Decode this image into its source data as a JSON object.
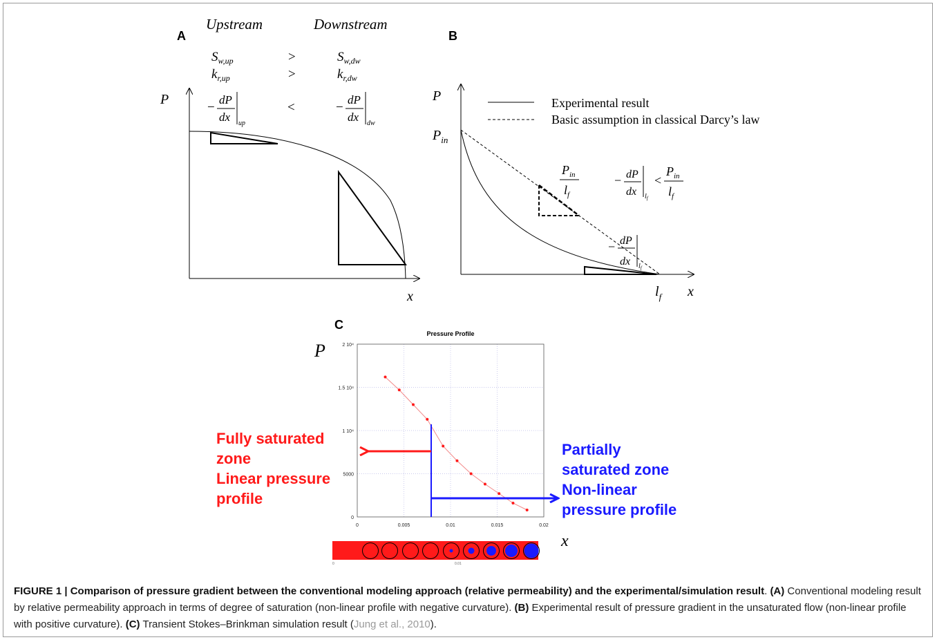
{
  "panel_a": {
    "letter": "A",
    "upstream": "Upstream",
    "downstream": "Downstream",
    "s_up": "S",
    "s_up_sub": "w,up",
    "s_dw": "S",
    "s_dw_sub": "w,dw",
    "k_up": "k",
    "k_up_sub": "r,up",
    "k_dw": "k",
    "k_dw_sub": "r,dw",
    "gt1": ">",
    "gt2": ">",
    "lt": "<",
    "minus": "−",
    "dP": "dP",
    "dx": "dx",
    "grad_up_sub": "up",
    "grad_dw_sub": "dw",
    "y_axis": "P",
    "x_axis": "x"
  },
  "panel_b": {
    "letter": "B",
    "y_axis": "P",
    "x_axis": "x",
    "p_in": "P",
    "p_in_sub": "in",
    "l_f": "l",
    "l_f_sub": "f",
    "legend_solid": "Experimental result",
    "legend_dashed": "Basic assumption in classical Darcy’s law",
    "ratio_num": "P",
    "ratio_num_sub": "in",
    "ratio_den": "l",
    "ratio_den_sub": "f",
    "minus": "−",
    "dP": "dP",
    "dx": "dx",
    "lt": "<",
    "grad_sub": "l",
    "grad_sub_sub": "f"
  },
  "panel_c": {
    "letter": "C",
    "title": "Pressure Profile",
    "y_axis": "P",
    "x_axis": "x",
    "ytick_labels": [
      "2 10⁴",
      "1.5 10⁴",
      "1 10⁴",
      "5000",
      "0"
    ],
    "xtick_labels": [
      "0",
      "0.005",
      "0.01",
      "0.015",
      "0.02"
    ],
    "bar_label_left": "0",
    "bar_label_mid": "0.01",
    "fully_saturated": [
      "Fully saturated",
      "zone",
      "Linear pressure",
      "profile"
    ],
    "partially_saturated": [
      "Partially",
      "saturated zone",
      "Non-linear",
      "pressure profile"
    ],
    "colors": {
      "red": "#ff1a1a",
      "blue": "#1a1aff",
      "curve": "#f26a6a"
    }
  },
  "chart_data": {
    "type": "line",
    "title": "Pressure Profile",
    "xlabel": "x",
    "ylabel": "P",
    "xlim": [
      0,
      0.02
    ],
    "ylim": [
      0,
      20000
    ],
    "grid": true,
    "x": [
      0.003,
      0.0045,
      0.006,
      0.0075,
      0.0092,
      0.0107,
      0.0122,
      0.0137,
      0.0152,
      0.0167,
      0.0182
    ],
    "values": [
      16200,
      14700,
      13000,
      11300,
      8200,
      6500,
      5000,
      3800,
      2700,
      1600,
      800
    ]
  },
  "caption": {
    "label": "FIGURE 1 | Comparison of pressure gradient between the conventional modeling approach (relative permeability) and the experimental/simulation result",
    "a_tag": "(A)",
    "a_text": " Conventional modeling result by relative permeability approach in terms of degree of saturation (non-linear profile with negative curvature). ",
    "b_tag": "(B)",
    "b_text": " Experimental result of pressure gradient in the unsaturated flow (non-linear profile with positive curvature). ",
    "c_tag": "(C)",
    "c_text": " Transient Stokes–Brinkman simulation result (",
    "citation": "Jung et al., 2010",
    "end": ")."
  }
}
